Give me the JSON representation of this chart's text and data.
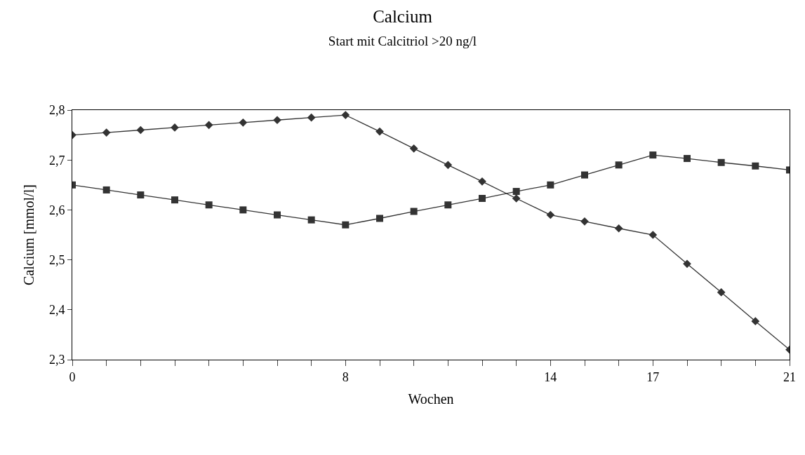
{
  "chart_data": {
    "type": "line",
    "title": "Calcium",
    "subtitle": "Start mit Calcitriol >20 ng/l",
    "xlabel": "Wochen",
    "ylabel": "Calcium [mmol/l]",
    "x": [
      0,
      1,
      2,
      3,
      4,
      5,
      6,
      7,
      8,
      9,
      10,
      11,
      12,
      13,
      14,
      15,
      16,
      17,
      18,
      19,
      20,
      21
    ],
    "series": [
      {
        "color": "#333333",
        "marker": "diamond",
        "values": [
          2.75,
          2.755,
          2.76,
          2.765,
          2.77,
          2.775,
          2.78,
          2.785,
          2.79,
          2.757,
          2.723,
          2.69,
          2.657,
          2.623,
          2.59,
          2.577,
          2.563,
          2.55,
          2.492,
          2.435,
          2.377,
          2.32
        ]
      },
      {
        "color": "#333333",
        "marker": "square",
        "values": [
          2.65,
          2.64,
          2.63,
          2.62,
          2.61,
          2.6,
          2.59,
          2.58,
          2.57,
          2.583,
          2.597,
          2.61,
          2.623,
          2.637,
          2.65,
          2.67,
          2.69,
          2.71,
          2.703,
          2.695,
          2.688,
          2.68
        ]
      }
    ],
    "xlim": [
      0,
      21
    ],
    "xticks": [
      0,
      {
        "value": 1,
        "label": null
      },
      {
        "value": 2,
        "label": null
      },
      {
        "value": 3,
        "label": null
      },
      {
        "value": 4,
        "label": null
      },
      {
        "value": 5,
        "label": null
      },
      {
        "value": 6,
        "label": null
      },
      {
        "value": 7,
        "label": null
      },
      8,
      {
        "value": 9,
        "label": null
      },
      {
        "value": 10,
        "label": null
      },
      {
        "value": 11,
        "label": null
      },
      {
        "value": 12,
        "label": null
      },
      {
        "value": 13,
        "label": null
      },
      14,
      {
        "value": 15,
        "label": null
      },
      {
        "value": 16,
        "label": null
      },
      17,
      {
        "value": 18,
        "label": null
      },
      {
        "value": 19,
        "label": null
      },
      {
        "value": 20,
        "label": null
      },
      21
    ],
    "ylim": [
      2.3,
      2.8
    ],
    "yticks": [
      {
        "value": 2.3,
        "label": "2,3"
      },
      {
        "value": 2.4,
        "label": "2,4"
      },
      {
        "value": 2.5,
        "label": "2,5"
      },
      {
        "value": 2.6,
        "label": "2,6"
      },
      {
        "value": 2.7,
        "label": "2,7"
      },
      {
        "value": 2.8,
        "label": "2,8"
      }
    ],
    "line_style": "solid"
  }
}
